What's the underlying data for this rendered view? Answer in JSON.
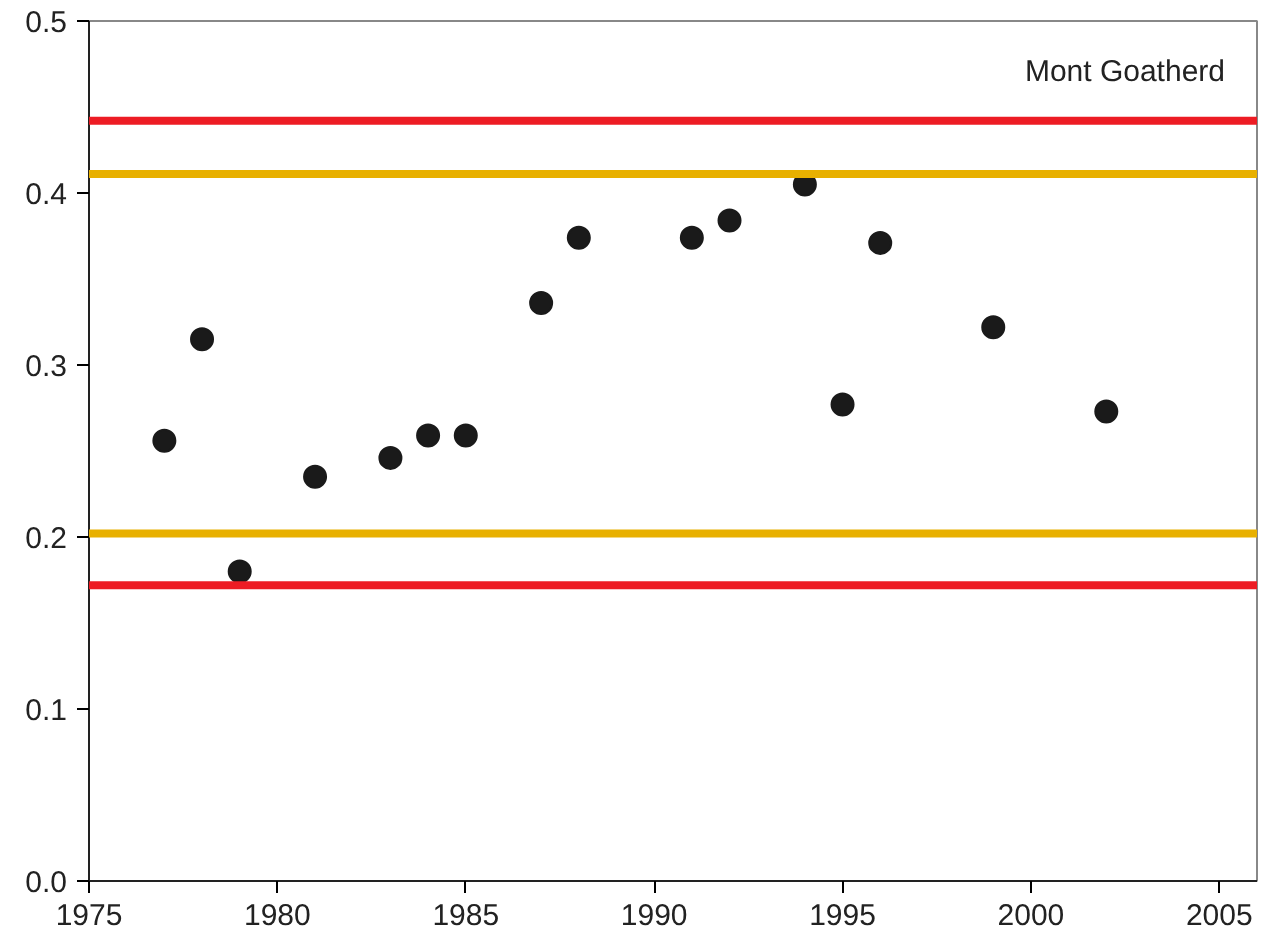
{
  "chart_data": {
    "type": "scatter",
    "x": [
      1977,
      1978,
      1979,
      1981,
      1983,
      1984,
      1985,
      1987,
      1988,
      1991,
      1992,
      1994,
      1995,
      1996,
      1999,
      2002
    ],
    "values": [
      0.256,
      0.315,
      0.18,
      0.235,
      0.246,
      0.259,
      0.259,
      0.336,
      0.374,
      0.374,
      0.384,
      0.405,
      0.277,
      0.371,
      0.322,
      0.273
    ],
    "color": "#1a1a1a",
    "marker": "circle",
    "xlim": [
      1975,
      2006
    ],
    "xticks": [
      1975,
      1980,
      1985,
      1990,
      1995,
      2000,
      2005
    ],
    "ylim": [
      0,
      0.5
    ],
    "yticks": [
      {
        "value": 0,
        "label": "0.0"
      },
      0.1,
      0.2,
      0.3,
      0.4,
      0.5
    ],
    "grid": false,
    "ref_lines": [
      {
        "axis": "y",
        "value": 0.442,
        "color": "#ed1c24"
      },
      {
        "axis": "y",
        "value": 0.411,
        "color": "#e8b000"
      },
      {
        "axis": "y",
        "value": 0.202,
        "color": "#e8b000"
      },
      {
        "axis": "y",
        "value": 0.172,
        "color": "#ed1c24"
      }
    ],
    "annotations": [
      "Mont Goatherd"
    ]
  }
}
